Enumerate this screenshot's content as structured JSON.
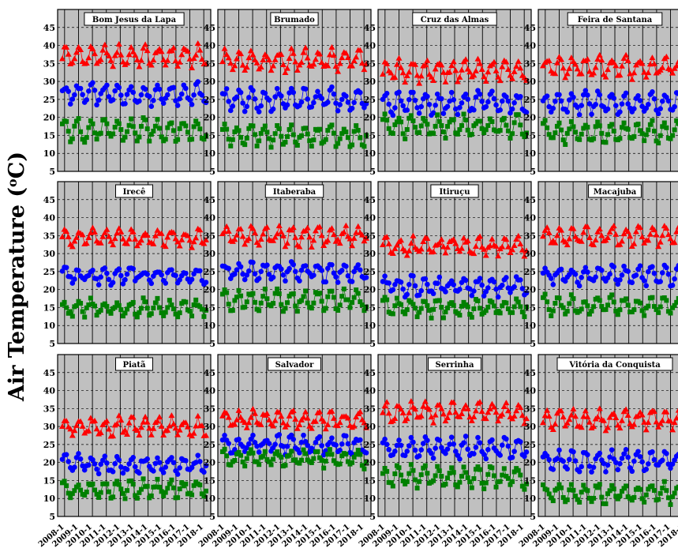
{
  "chart_data": {
    "type": "scatter",
    "ylabel_main": "Air Temperature (",
    "ylabel_sup": "o",
    "ylabel_unit": "C)",
    "ylim": [
      5,
      50
    ],
    "yticks": [
      "5",
      "10",
      "15",
      "20",
      "25",
      "30",
      "35",
      "40",
      "45"
    ],
    "xticks": [
      "2008-1",
      "2009-1",
      "2010-1",
      "2011-1",
      "2012-1",
      "2013-1",
      "2014-1",
      "2015-1",
      "2016-1",
      "2017-1",
      "2018-1"
    ],
    "grid": true,
    "colors": {
      "max": "#ff0000",
      "mean": "#0000ff",
      "min": "#008000",
      "panel_bg": "#c0c0c0"
    },
    "panels": [
      {
        "title": "Bom Jesus da Lapa",
        "max_base": 37,
        "mean_base": 26.5,
        "min_base": 16.5,
        "amp": 2.5
      },
      {
        "title": "Brumado",
        "max_base": 36,
        "mean_base": 25,
        "min_base": 15,
        "amp": 2.5
      },
      {
        "title": "Cruz das Almas",
        "max_base": 33,
        "mean_base": 24,
        "min_base": 17.5,
        "amp": 2.5
      },
      {
        "title": "Feira de Santana",
        "max_base": 34,
        "mean_base": 24,
        "min_base": 16,
        "amp": 2.5
      },
      {
        "title": "Irecê",
        "max_base": 34.5,
        "mean_base": 24,
        "min_base": 15,
        "amp": 1.8
      },
      {
        "title": "Itaberaba",
        "max_base": 35,
        "mean_base": 25,
        "min_base": 17,
        "amp": 2.2
      },
      {
        "title": "Itiruçu",
        "max_base": 32,
        "mean_base": 21,
        "min_base": 15,
        "amp": 2
      },
      {
        "title": "Macajuba",
        "max_base": 35,
        "mean_base": 24,
        "min_base": 15.5,
        "amp": 2.2
      },
      {
        "title": "Piatã",
        "max_base": 30,
        "mean_base": 19.5,
        "min_base": 12.5,
        "amp": 2
      },
      {
        "title": "Salvador",
        "max_base": 32,
        "mean_base": 25,
        "min_base": 21,
        "amp": 2
      },
      {
        "title": "Serrinha",
        "max_base": 34,
        "mean_base": 24,
        "min_base": 16,
        "amp": 2.5
      },
      {
        "title": "Vitória da Conquista",
        "max_base": 32,
        "mean_base": 20.5,
        "min_base": 11.5,
        "amp": 2.2
      }
    ]
  }
}
